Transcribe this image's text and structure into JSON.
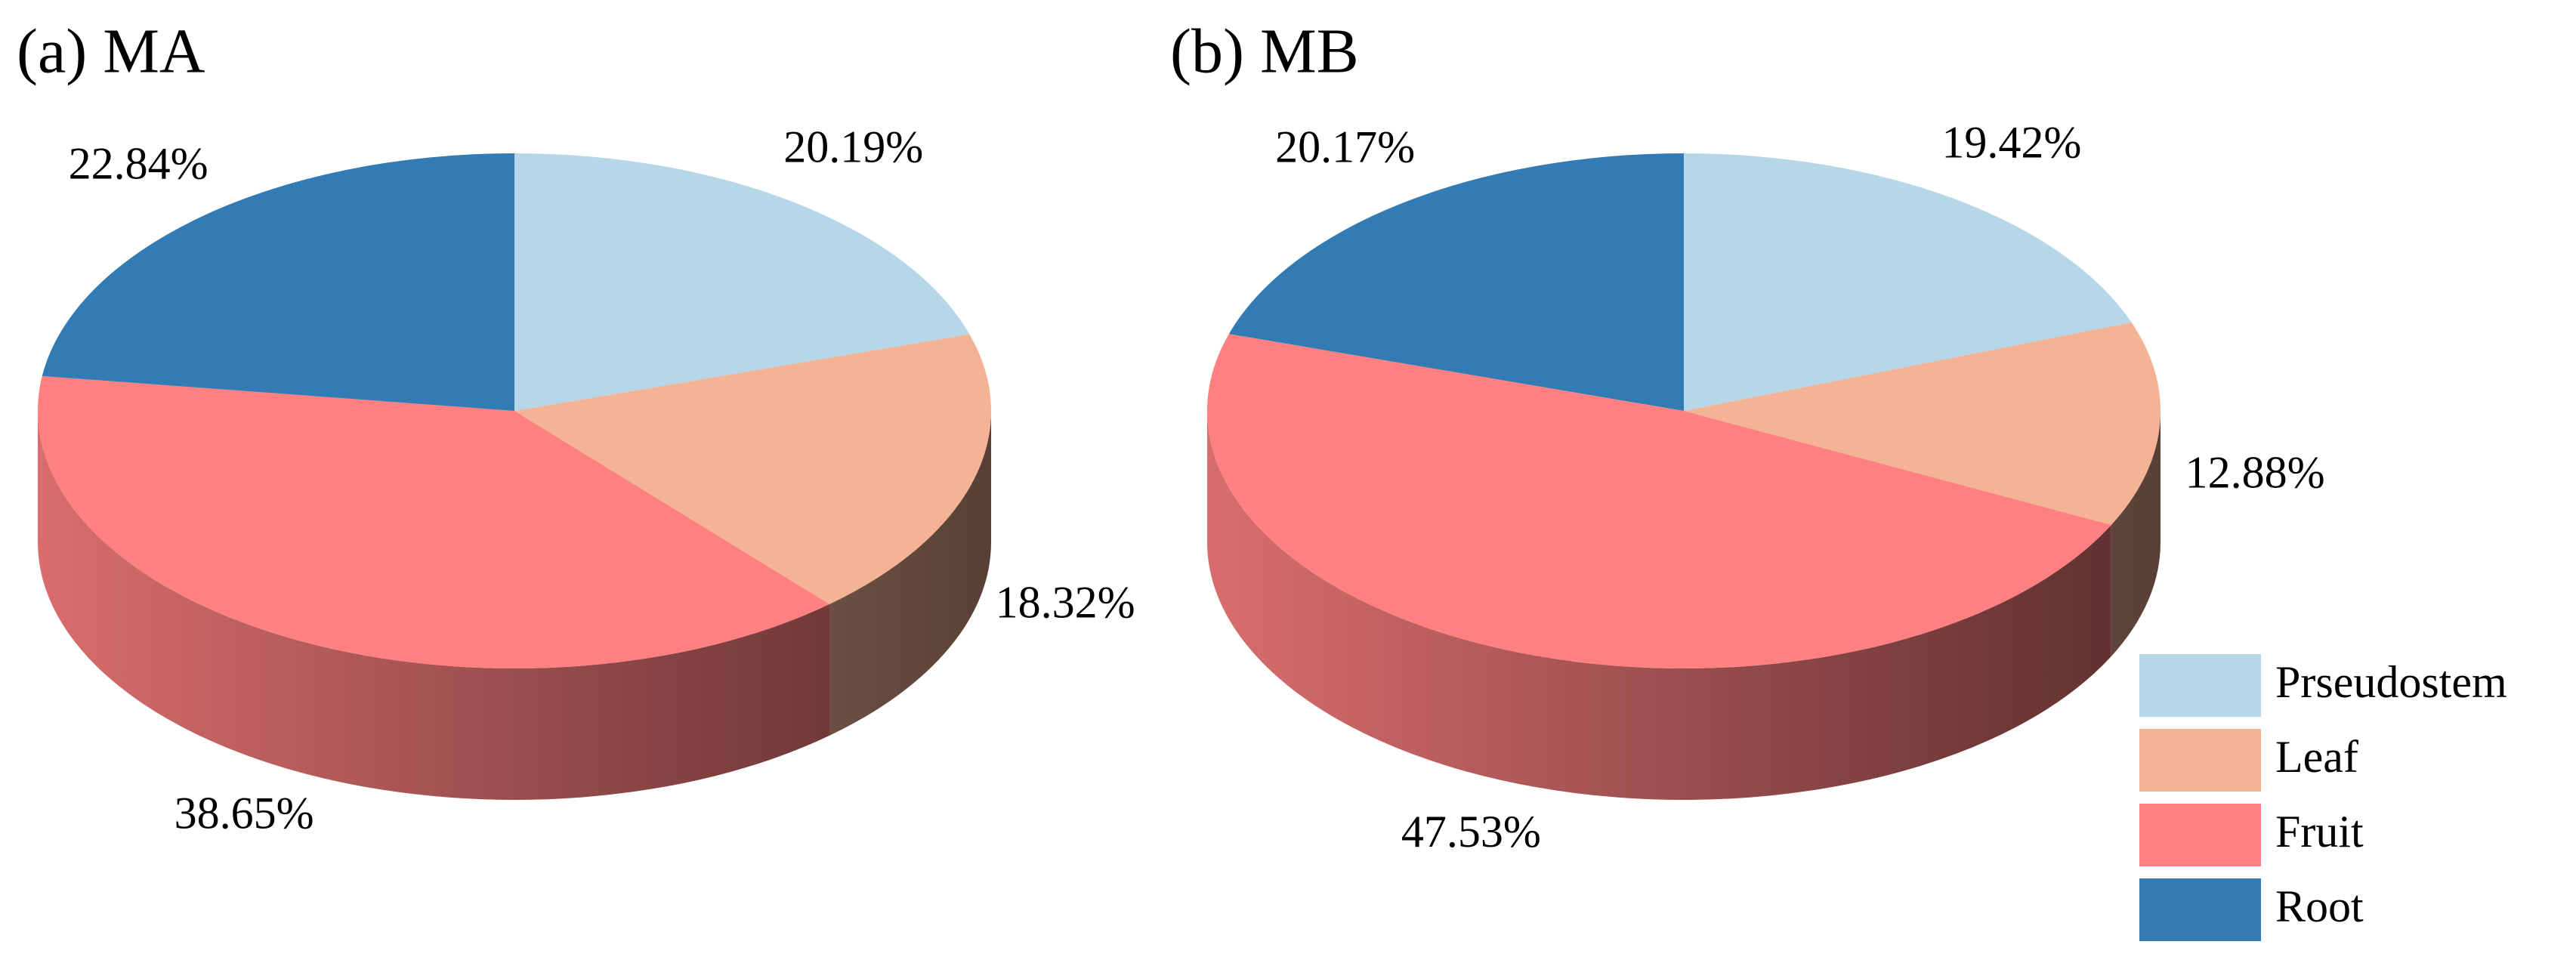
{
  "chart_data": [
    {
      "type": "pie3d",
      "title": "(a) MA",
      "values": [
        20.19,
        18.32,
        38.65,
        22.84
      ],
      "value_labels": [
        "20.19%",
        "18.32%",
        "38.65%",
        "22.84%"
      ],
      "colors": [
        "#b6d7e8",
        "#f5b395",
        "#ff8080",
        "#327bb4"
      ]
    },
    {
      "type": "pie3d",
      "title": "(b) MB",
      "categories": [
        "Prseudostem",
        "Leaf",
        "Fruit",
        "Root"
      ],
      "values": [
        19.42,
        12.88,
        47.53,
        20.17
      ],
      "value_labels": [
        "19.42%",
        "12.88%",
        "47.53%",
        "20.17%"
      ],
      "colors": [
        "#b6d7e8",
        "#f5b395",
        "#ff8080",
        "#327bb4"
      ],
      "legend": "lower right"
    }
  ]
}
